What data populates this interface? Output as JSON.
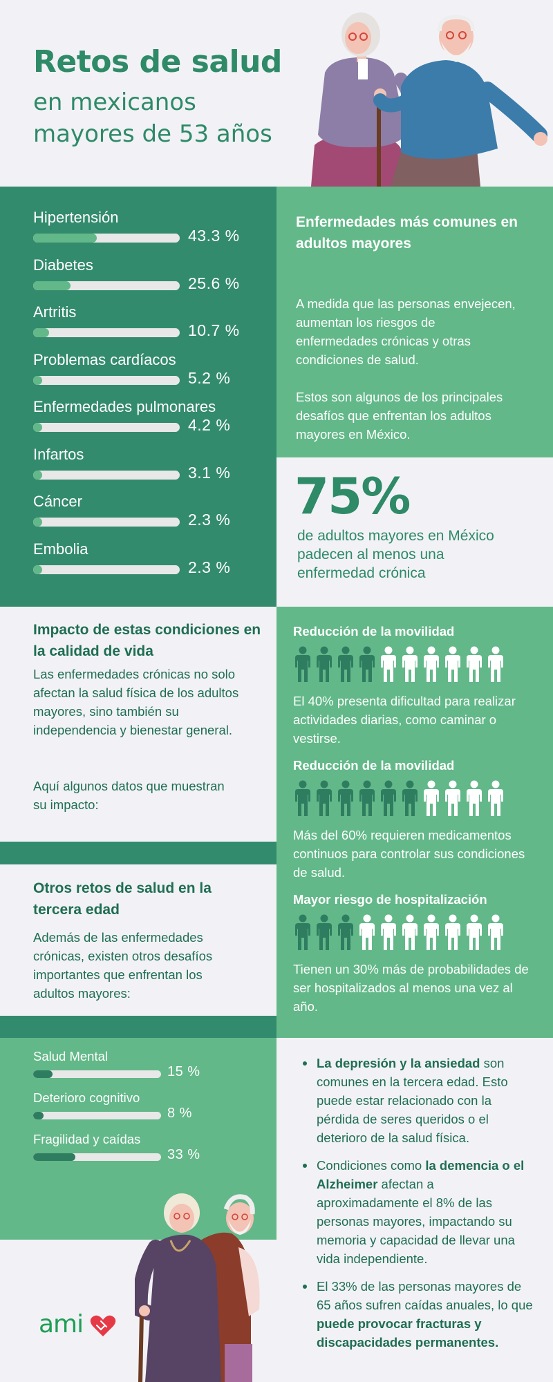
{
  "header": {
    "title": "Retos de salud",
    "subtitle_line1": "en mexicanos",
    "subtitle_line2": "mayores de 53 años"
  },
  "chart_data": [
    {
      "type": "bar",
      "categories": [
        "Hipertensión",
        "Diabetes",
        "Artritis",
        "Problemas cardíacos",
        "Enfermedades pulmonares",
        "Infartos",
        "Cáncer",
        "Embolia"
      ],
      "values": [
        43.3,
        25.6,
        10.7,
        5.2,
        4.2,
        3.1,
        2.3,
        2.3
      ],
      "value_labels": [
        "43.3 %",
        "25.6 %",
        "10.7 %",
        "5.2 %",
        "4.2 %",
        "3.1 %",
        "2.3 %",
        "2.3 %"
      ],
      "xlim": [
        0,
        100
      ]
    },
    {
      "type": "bar",
      "categories": [
        "Salud Mental",
        "Deterioro cognitivo",
        "Fragilidad y caídas"
      ],
      "values": [
        15,
        8,
        33
      ],
      "value_labels": [
        "15 %",
        "8 %",
        "33 %"
      ],
      "xlim": [
        0,
        100
      ]
    }
  ],
  "common_diseases": {
    "title": "Enfermedades más comunes en adultos mayores",
    "paragraph1": "A medida que las personas envejecen, aumentan los riesgos de enfermedades crónicas y otras condiciones de salud.",
    "paragraph2": "Estos son algunos de los principales desafíos que enfrentan los adultos mayores en México."
  },
  "highlight": {
    "percent": "75%",
    "caption": "de adultos mayores en México padecen al menos una enfermedad crónica"
  },
  "impact": {
    "title": "Impacto de estas condiciones en la calidad de vida",
    "paragraph1": "Las enfermedades crónicas no solo afectan la salud física de los adultos mayores, sino también su independencia y bienestar general.",
    "paragraph2": "Aquí algunos datos que muestran su impacto:"
  },
  "stats": [
    {
      "title": "Reducción de la movilidad",
      "filled": 4,
      "total": 10,
      "text": "El 40% presenta dificultad para realizar actividades diarias, como caminar o vestirse."
    },
    {
      "title": "Reducción de la movilidad",
      "filled": 6,
      "total": 10,
      "text": "Más del 60% requieren medicamentos continuos para controlar sus condiciones de salud."
    },
    {
      "title": "Mayor riesgo de hospitalización",
      "filled": 3,
      "total": 10,
      "text": "Tienen un 30% más de probabilidades de ser hospitalizados al menos una vez al año."
    }
  ],
  "other": {
    "title": "Otros retos de salud en la tercera edad",
    "paragraph": "Además de las enfermedades crónicas, existen otros desafíos importantes que enfrentan los adultos mayores:"
  },
  "bullets": [
    {
      "pre": "",
      "bold": "La depresión y la ansiedad",
      "post": " son comunes en la tercera edad. Esto puede estar relacionado con la pérdida de seres queridos o el deterioro de la salud física."
    },
    {
      "pre": "Condiciones como ",
      "bold": "la demencia o el Alzheimer",
      "post": " afectan a aproximadamente el 8% de las personas mayores, impactando su memoria y capacidad de llevar una vida independiente."
    },
    {
      "pre": "El 33% de las personas mayores de 65 años sufren caídas anuales, lo que ",
      "bold": "puede provocar fracturas y discapacidades permanentes.",
      "post": ""
    }
  ],
  "logo": {
    "text": "ami"
  },
  "colors": {
    "dark_green": "#338b6d",
    "mid_green": "#62b888",
    "title_green": "#2e8a67",
    "background": "#f2f2f6",
    "logo_red": "#e63946"
  },
  "icons": [
    "person-icon",
    "heart-icon"
  ]
}
